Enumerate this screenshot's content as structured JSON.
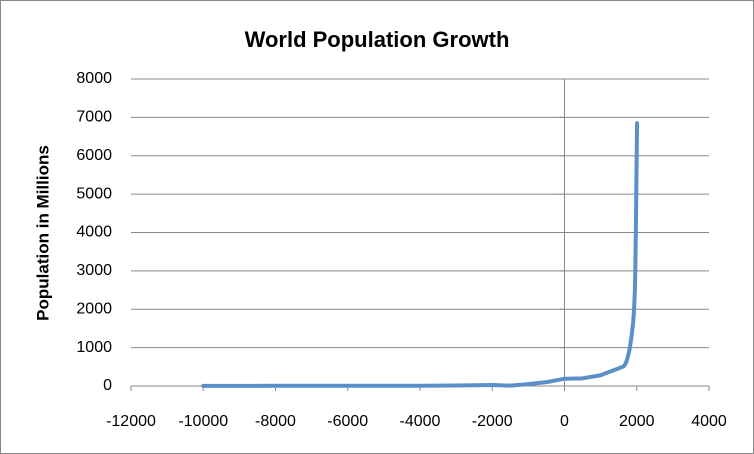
{
  "chart_data": {
    "type": "line",
    "title": "World Population Growth",
    "y_label": "Population in Millions",
    "x": [
      -10000,
      -8000,
      -6000,
      -5000,
      -4000,
      -3000,
      -2000,
      -1500,
      -1000,
      -500,
      0,
      500,
      1000,
      1250,
      1500,
      1650,
      1700,
      1750,
      1800,
      1850,
      1900,
      1920,
      1940,
      1950,
      1960,
      1970,
      1980,
      1990,
      2000,
      2008
    ],
    "series": [
      {
        "name": "Population",
        "color": "#5b8fc7",
        "values": [
          4,
          5,
          5,
          5,
          7,
          14,
          27,
          10,
          50,
          100,
          190,
          200,
          280,
          370,
          460,
          520,
          600,
          750,
          950,
          1250,
          1650,
          1900,
          2300,
          2550,
          3000,
          3700,
          4450,
          5300,
          6100,
          6850
        ]
      }
    ],
    "xlim": [
      -12000,
      4000
    ],
    "xticks": [
      -12000,
      -10000,
      -8000,
      -6000,
      -4000,
      -2000,
      0,
      2000,
      4000
    ],
    "ylim": [
      0,
      8000
    ],
    "yticks": [
      0,
      1000,
      2000,
      3000,
      4000,
      5000,
      6000,
      7000,
      8000
    ],
    "grid": true
  }
}
